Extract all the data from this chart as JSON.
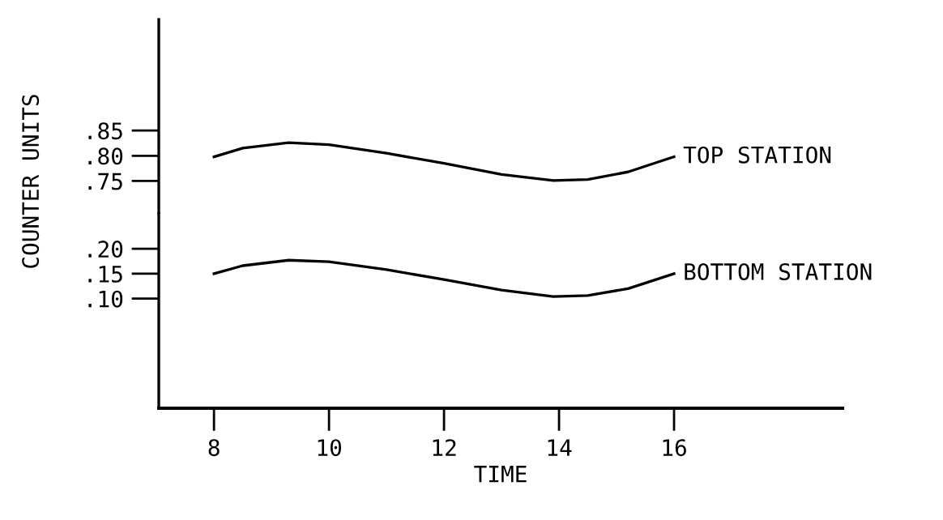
{
  "chart_data": [
    {
      "type": "line",
      "ylabel": "COUNTER UNITS",
      "xlim": [
        7.04,
        18.93
      ],
      "ylim": [
        0.685,
        1.07
      ],
      "tick_labels": "y",
      "yticks": [
        {
          "value": 0.85,
          "label": ".85"
        },
        {
          "value": 0.8,
          "label": ".80"
        },
        {
          "value": 0.75,
          "label": ".75"
        }
      ],
      "series": [
        {
          "name": "TOP STATION",
          "color": "#000000",
          "x": [
            8,
            8.5,
            9.3,
            10,
            11,
            12,
            13,
            13.9,
            14.5,
            15.2,
            16
          ],
          "values": [
            0.798,
            0.815,
            0.826,
            0.822,
            0.805,
            0.785,
            0.763,
            0.751,
            0.753,
            0.768,
            0.798
          ]
        }
      ]
    },
    {
      "type": "line",
      "xlabel": "TIME",
      "xlim": [
        7.04,
        18.93
      ],
      "ylim": [
        -0.12,
        0.27
      ],
      "xticks": [
        8,
        10,
        12,
        14,
        16
      ],
      "yticks": [
        {
          "value": 0.2,
          "label": ".20"
        },
        {
          "value": 0.15,
          "label": ".15"
        },
        {
          "value": 0.1,
          "label": ".10"
        }
      ],
      "series": [
        {
          "name": "BOTTOM STATION",
          "color": "#000000",
          "x": [
            8,
            8.5,
            9.3,
            10,
            11,
            12,
            13,
            13.9,
            14.5,
            15.2,
            16
          ],
          "values": [
            0.15,
            0.166,
            0.177,
            0.174,
            0.158,
            0.138,
            0.117,
            0.104,
            0.106,
            0.12,
            0.15
          ]
        }
      ]
    }
  ]
}
